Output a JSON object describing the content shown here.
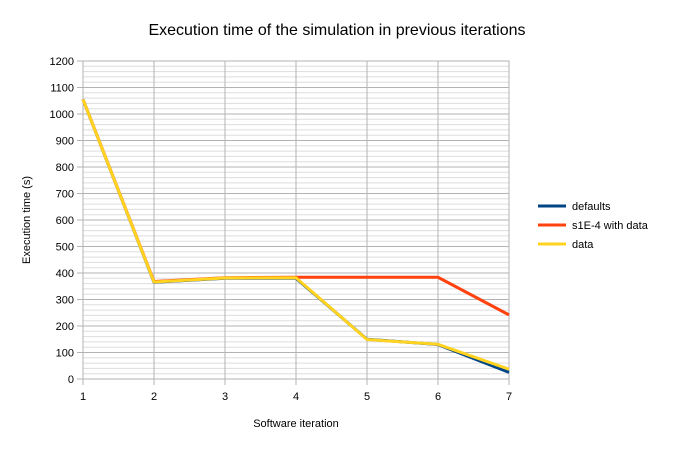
{
  "chart_data": {
    "type": "line",
    "title": "Execution time of the simulation in previous iterations",
    "xlabel": "Software iteration",
    "ylabel": "Execution time (s)",
    "x": [
      1,
      2,
      3,
      4,
      5,
      6,
      7
    ],
    "x_tick_labels": [
      "1",
      "2",
      "3",
      "4",
      "5",
      "6",
      "7"
    ],
    "ylim": [
      0,
      1200
    ],
    "y_major_step": 100,
    "y_minor_step": 20,
    "y_tick_labels": [
      "0",
      "100",
      "200",
      "300",
      "400",
      "500",
      "600",
      "700",
      "800",
      "900",
      "1000",
      "1100",
      "1200"
    ],
    "grid": true,
    "legend_position": "right",
    "series": [
      {
        "name": "defaults",
        "color": "#004586",
        "values": [
          1055,
          365,
          380,
          380,
          150,
          130,
          25
        ]
      },
      {
        "name": "s1E-4 with data",
        "color": "#ff420e",
        "values": [
          1055,
          368,
          382,
          384,
          384,
          384,
          242
        ]
      },
      {
        "name": "data",
        "color": "#ffd320",
        "values": [
          1055,
          366,
          381,
          382,
          149,
          131,
          37
        ]
      }
    ]
  }
}
